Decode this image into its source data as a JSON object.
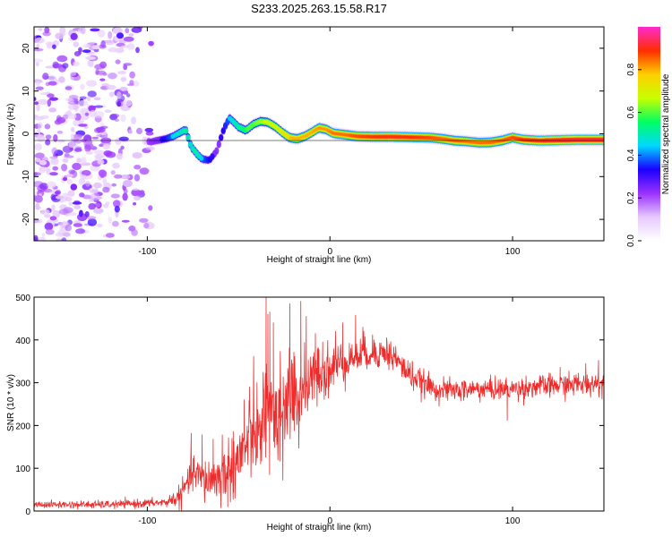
{
  "title": "S233.2025.263.15.58.R17",
  "chart_data": [
    {
      "type": "heatmap",
      "name": "spectrogram",
      "xlabel": "Height of straight line (km)",
      "ylabel": "Frequency (Hz)",
      "xlim": [
        -162,
        150
      ],
      "ylim": [
        -25,
        25
      ],
      "x_ticks": [
        -100,
        0,
        100
      ],
      "y_ticks": [
        -20,
        -10,
        0,
        10,
        20
      ],
      "colorbar": {
        "label": "Normalized spectral amplitude",
        "range": [
          0,
          1
        ],
        "ticks": [
          "0.0",
          "0.2",
          "0.4",
          "0.6",
          "0.8"
        ],
        "tick_values": [
          0,
          0.2,
          0.4,
          0.6,
          0.8
        ],
        "colors": [
          "#ffffff",
          "#e6c8ff",
          "#9a30ff",
          "#1a00ff",
          "#00d8ff",
          "#00ff60",
          "#c8ff00",
          "#ffcf00",
          "#ff2d00",
          "#ff2ad0"
        ]
      },
      "noise_region_x": [
        -162,
        -96
      ],
      "ridge": [
        [
          -104,
          -1.4,
          0.1
        ],
        [
          -98,
          -1.9,
          0.25
        ],
        [
          -95,
          -1.6,
          0.3
        ],
        [
          -90,
          -1.2,
          0.35
        ],
        [
          -86,
          -0.6,
          0.45
        ],
        [
          -82,
          0.3,
          0.5
        ],
        [
          -79,
          1.0,
          0.55
        ],
        [
          -76,
          -3.0,
          0.5
        ],
        [
          -73,
          -4.6,
          0.55
        ],
        [
          -70,
          -5.9,
          0.45
        ],
        [
          -66,
          -6.2,
          0.35
        ],
        [
          -62,
          -4.0,
          0.3
        ],
        [
          -58,
          1.2,
          0.35
        ],
        [
          -55,
          3.7,
          0.45
        ],
        [
          -50,
          1.6,
          0.55
        ],
        [
          -46,
          0.8,
          0.6
        ],
        [
          -42,
          2.2,
          0.6
        ],
        [
          -38,
          2.9,
          0.65
        ],
        [
          -34,
          2.7,
          0.7
        ],
        [
          -30,
          1.7,
          0.7
        ],
        [
          -26,
          0.3,
          0.75
        ],
        [
          -22,
          -0.9,
          0.8
        ],
        [
          -18,
          -1.2,
          0.8
        ],
        [
          -14,
          -0.6,
          0.8
        ],
        [
          -10,
          0.3,
          0.8
        ],
        [
          -6,
          1.4,
          0.82
        ],
        [
          -2,
          1.0,
          0.82
        ],
        [
          2,
          0.1,
          0.85
        ],
        [
          8,
          -0.2,
          0.85
        ],
        [
          15,
          -0.6,
          0.88
        ],
        [
          25,
          -0.7,
          0.9
        ],
        [
          35,
          -0.7,
          0.92
        ],
        [
          45,
          -0.8,
          0.9
        ],
        [
          55,
          -0.9,
          0.88
        ],
        [
          62,
          -1.2,
          0.86
        ],
        [
          68,
          -1.6,
          0.86
        ],
        [
          75,
          -1.8,
          0.85
        ],
        [
          82,
          -2.1,
          0.85
        ],
        [
          88,
          -2.0,
          0.86
        ],
        [
          94,
          -1.6,
          0.86
        ],
        [
          100,
          -0.9,
          0.88
        ],
        [
          106,
          -1.4,
          0.9
        ],
        [
          115,
          -1.6,
          0.92
        ],
        [
          125,
          -1.5,
          0.94
        ],
        [
          135,
          -1.4,
          0.95
        ],
        [
          145,
          -1.4,
          0.95
        ],
        [
          150,
          -1.4,
          0.95
        ]
      ]
    },
    {
      "type": "line",
      "name": "snr",
      "xlabel": "Height of straight line (km)",
      "ylabel": "SNR (10 * v/v)",
      "xlim": [
        -162,
        150
      ],
      "ylim": [
        0,
        500
      ],
      "x_ticks": [
        -100,
        0,
        100
      ],
      "y_ticks": [
        0,
        100,
        200,
        300,
        400,
        500
      ],
      "color": "#ee2c2c",
      "envelope": [
        [
          -162,
          15
        ],
        [
          -120,
          15
        ],
        [
          -90,
          20
        ],
        [
          -82,
          35
        ],
        [
          -75,
          90
        ],
        [
          -68,
          70
        ],
        [
          -60,
          80
        ],
        [
          -50,
          120
        ],
        [
          -45,
          160
        ],
        [
          -40,
          180
        ],
        [
          -35,
          260
        ],
        [
          -30,
          220
        ],
        [
          -25,
          250
        ],
        [
          -20,
          260
        ],
        [
          -15,
          290
        ],
        [
          -10,
          300
        ],
        [
          -5,
          320
        ],
        [
          0,
          330
        ],
        [
          5,
          345
        ],
        [
          10,
          355
        ],
        [
          20,
          370
        ],
        [
          30,
          370
        ],
        [
          35,
          360
        ],
        [
          40,
          335
        ],
        [
          45,
          315
        ],
        [
          50,
          300
        ],
        [
          55,
          290
        ],
        [
          60,
          283
        ],
        [
          70,
          282
        ],
        [
          80,
          285
        ],
        [
          100,
          285
        ],
        [
          110,
          290
        ],
        [
          120,
          292
        ],
        [
          130,
          295
        ],
        [
          150,
          300
        ]
      ],
      "noise_sd": [
        [
          -162,
          4
        ],
        [
          -90,
          5
        ],
        [
          -80,
          15
        ],
        [
          -70,
          25
        ],
        [
          -55,
          35
        ],
        [
          -40,
          55
        ],
        [
          -30,
          60
        ],
        [
          -20,
          50
        ],
        [
          -5,
          35
        ],
        [
          10,
          22
        ],
        [
          30,
          18
        ],
        [
          45,
          16
        ],
        [
          60,
          13
        ],
        [
          100,
          13
        ],
        [
          150,
          14
        ]
      ],
      "peaks": [
        [
          -35,
          500
        ],
        [
          -34,
          460
        ],
        [
          -33,
          465
        ],
        [
          -31,
          440
        ],
        [
          -22,
          485
        ],
        [
          -16,
          490
        ],
        [
          -13,
          455
        ],
        [
          -8,
          415
        ],
        [
          -4,
          395
        ],
        [
          3,
          420
        ],
        [
          7,
          440
        ],
        [
          14,
          458
        ],
        [
          18,
          430
        ],
        [
          24,
          400
        ],
        [
          31,
          405
        ],
        [
          36,
          385
        ],
        [
          45,
          350
        ],
        [
          97,
          212
        ],
        [
          126,
          336
        ],
        [
          140,
          345
        ],
        [
          147,
          352
        ],
        [
          -76,
          182
        ],
        [
          -70,
          178
        ],
        [
          -64,
          168
        ],
        [
          -59,
          178
        ],
        [
          -53,
          186
        ],
        [
          -47,
          260
        ],
        [
          -44,
          290
        ],
        [
          -40,
          300
        ],
        [
          -38,
          110
        ],
        [
          -56,
          10
        ],
        [
          -52,
          30
        ]
      ]
    }
  ]
}
